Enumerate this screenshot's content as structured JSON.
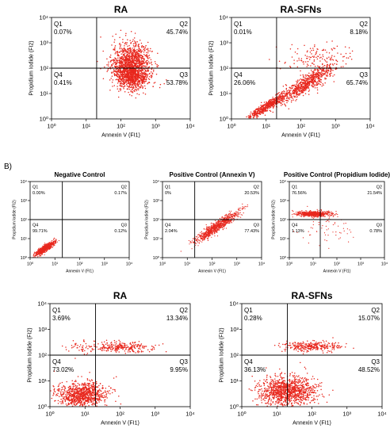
{
  "section_label": "B)",
  "colors": {
    "dots": "#e8281e",
    "lines": "#000000"
  },
  "chart_data": [
    {
      "type": "scatter",
      "title": "RA",
      "xlabel": "Annexin V (FI1)",
      "ylabel": "Propidium Iodide (FI2)",
      "xlim": [
        1,
        10000
      ],
      "ylim": [
        1,
        10000
      ],
      "xscale": "log",
      "yscale": "log",
      "gate": [
        20,
        100
      ],
      "xticks": [
        "10⁰",
        "10¹",
        "10²",
        "10³",
        "10⁴"
      ],
      "yticks": [
        "10⁰",
        "10¹",
        "10²",
        "10³",
        "10⁴"
      ],
      "quadrants": {
        "Q1": "0.07%",
        "Q2": "45.74%",
        "Q3": "53.78%",
        "Q4": "0.41%"
      },
      "clusters": [
        {
          "cx": 200,
          "cy": 130,
          "sx": 0.28,
          "sy": 0.42,
          "n": 1400
        },
        {
          "cx": 220,
          "cy": 40,
          "sx": 0.22,
          "sy": 0.2,
          "n": 400
        }
      ]
    },
    {
      "type": "scatter",
      "title": "RA-SFNs",
      "xlabel": "Annexin V (FI1)",
      "ylabel": "Propidium Iodide (FI2)",
      "xlim": [
        1,
        10000
      ],
      "ylim": [
        1,
        10000
      ],
      "xscale": "log",
      "yscale": "log",
      "gate": [
        20,
        100
      ],
      "xticks": [
        "10⁰",
        "10¹",
        "10²",
        "10³",
        "10⁴"
      ],
      "yticks": [
        "10⁰",
        "10¹",
        "10²",
        "10³",
        "10⁴"
      ],
      "quadrants": {
        "Q1": "0.01%",
        "Q2": "8.18%",
        "Q3": "65.74%",
        "Q4": "26.06%"
      },
      "clusters": [
        {
          "cx": 10,
          "cy": 3,
          "sx": 0.3,
          "sy": 0.18,
          "n": 500,
          "diag": true
        },
        {
          "cx": 150,
          "cy": 25,
          "sx": 0.45,
          "sy": 0.35,
          "n": 700,
          "diag": true
        },
        {
          "cx": 200,
          "cy": 250,
          "sx": 0.45,
          "sy": 0.3,
          "n": 120
        }
      ]
    },
    {
      "type": "scatter",
      "title": "Negative Control",
      "xlabel": "Annexin V (FI1)",
      "ylabel": "Propidium Iodide (FI2)",
      "xlim": [
        1,
        10000
      ],
      "ylim": [
        1,
        10000
      ],
      "xscale": "log",
      "yscale": "log",
      "gate": [
        20,
        100
      ],
      "xticks": [
        "10⁰",
        "10¹",
        "10²",
        "10³",
        "10⁴"
      ],
      "yticks": [
        "10⁰",
        "10¹",
        "10²",
        "10³",
        "10⁴"
      ],
      "quadrants": {
        "Q1": "0.00%",
        "Q2": "0.17%",
        "Q3": "0.12%",
        "Q4": "99.71%"
      },
      "clusters": [
        {
          "cx": 4,
          "cy": 3,
          "sx": 0.2,
          "sy": 0.18,
          "n": 700,
          "diag": true
        }
      ]
    },
    {
      "type": "scatter",
      "title": "Positive Control (Annexin V)",
      "xlabel": "Annexin V (FI1)",
      "ylabel": "Propidium Iodide (FI2)",
      "xlim": [
        1,
        10000
      ],
      "ylim": [
        1,
        10000
      ],
      "xscale": "log",
      "yscale": "log",
      "gate": [
        20,
        100
      ],
      "xticks": [
        "10⁰",
        "10¹",
        "10²",
        "10³",
        "10⁴"
      ],
      "yticks": [
        "10⁰",
        "10¹",
        "10²",
        "10³",
        "10⁴"
      ],
      "quadrants": {
        "Q1": "0%",
        "Q2": "20.53%",
        "Q3": "77.43%",
        "Q4": "2.04%"
      },
      "clusters": [
        {
          "cx": 150,
          "cy": 40,
          "sx": 0.45,
          "sy": 0.3,
          "n": 900,
          "diag": true
        }
      ]
    },
    {
      "type": "scatter",
      "title": "Positive Control (Propidium Iodide)",
      "xlabel": "Annexin V (FI1)",
      "ylabel": "Propidium Iodide (FI2)",
      "xlim": [
        1,
        10000
      ],
      "ylim": [
        1,
        10000
      ],
      "xscale": "log",
      "yscale": "log",
      "gate": [
        20,
        100
      ],
      "xticks": [
        "10⁰",
        "10¹",
        "10²",
        "10³",
        "10⁴"
      ],
      "yticks": [
        "10⁰",
        "10¹",
        "10²",
        "10³",
        "10⁴"
      ],
      "quadrants": {
        "Q1": "76.56%",
        "Q2": "21.54%",
        "Q3": "0.78%",
        "Q4": "1.13%"
      },
      "clusters": [
        {
          "cx": 10,
          "cy": 200,
          "sx": 0.35,
          "sy": 0.07,
          "n": 700
        },
        {
          "cx": 40,
          "cy": 30,
          "sx": 0.5,
          "sy": 0.5,
          "n": 60
        }
      ]
    },
    {
      "type": "scatter",
      "title": "RA",
      "xlabel": "Annexin V (FI1)",
      "ylabel": "Propidium Iodide (FI2)",
      "xlim": [
        1,
        10000
      ],
      "ylim": [
        1,
        10000
      ],
      "xscale": "log",
      "yscale": "log",
      "gate": [
        20,
        100
      ],
      "xticks": [
        "10⁰",
        "10¹",
        "10²",
        "10³",
        "10⁴"
      ],
      "yticks": [
        "10⁰",
        "10¹",
        "10²",
        "10³",
        "10⁴"
      ],
      "quadrants": {
        "Q1": "3.69%",
        "Q2": "13.34%",
        "Q3": "9.95%",
        "Q4": "73.02%"
      },
      "clusters": [
        {
          "cx": 8,
          "cy": 3,
          "sx": 0.35,
          "sy": 0.25,
          "n": 900
        },
        {
          "cx": 120,
          "cy": 200,
          "sx": 0.45,
          "sy": 0.1,
          "n": 250
        },
        {
          "cx": 8,
          "cy": 200,
          "sx": 0.25,
          "sy": 0.15,
          "n": 40
        }
      ]
    },
    {
      "type": "scatter",
      "title": "RA-SFNs",
      "xlabel": "Annexin V (FI1)",
      "ylabel": "Propidium Iodide (FI2)",
      "xlim": [
        1,
        10000
      ],
      "ylim": [
        1,
        10000
      ],
      "xscale": "log",
      "yscale": "log",
      "gate": [
        20,
        100
      ],
      "xticks": [
        "10⁰",
        "10¹",
        "10²",
        "10³",
        "10⁴"
      ],
      "yticks": [
        "10⁰",
        "10¹",
        "10²",
        "10³",
        "10⁴"
      ],
      "quadrants": {
        "Q1": "0.28%",
        "Q2": "15.07%",
        "Q3": "48.52%",
        "Q4": "36.13%"
      },
      "clusters": [
        {
          "cx": 20,
          "cy": 4,
          "sx": 0.4,
          "sy": 0.28,
          "n": 1100
        },
        {
          "cx": 100,
          "cy": 220,
          "sx": 0.4,
          "sy": 0.1,
          "n": 300
        }
      ]
    }
  ]
}
